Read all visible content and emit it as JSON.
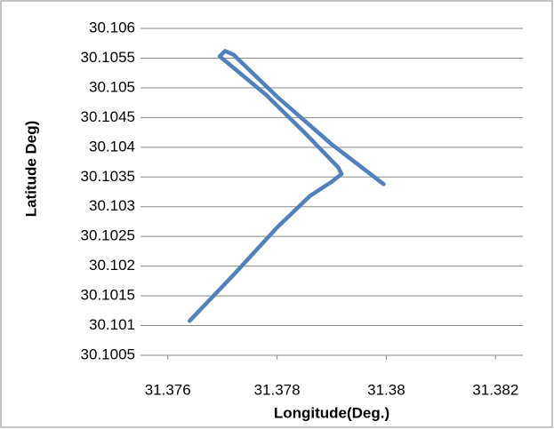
{
  "chart_data": {
    "type": "line",
    "x_label": "Longitude(Deg.)",
    "y_label": "Latitude Deg)",
    "series": [
      {
        "color": "#4f81bd",
        "x": [
          31.3764,
          31.3772,
          31.378,
          31.3786,
          31.379,
          31.37918,
          31.37912,
          31.3785,
          31.3778,
          31.37695,
          31.37705,
          31.3772,
          31.378,
          31.379,
          31.37995
        ],
        "values": [
          30.10108,
          30.10185,
          30.10265,
          30.10318,
          30.10342,
          30.10355,
          30.10366,
          30.10425,
          30.10488,
          30.10553,
          30.10562,
          30.10556,
          30.10485,
          30.10405,
          30.10338
        ]
      }
    ],
    "xlim": [
      31.3755,
      31.3825
    ],
    "xticks": [
      31.376,
      31.378,
      31.38,
      31.382
    ],
    "ylim": [
      30.1005,
      30.106
    ],
    "yticks": [
      30.106,
      30.1055,
      30.105,
      30.1045,
      30.104,
      30.1035,
      30.103,
      30.1025,
      30.102,
      30.1015,
      30.101,
      30.1005
    ],
    "grid": true
  }
}
